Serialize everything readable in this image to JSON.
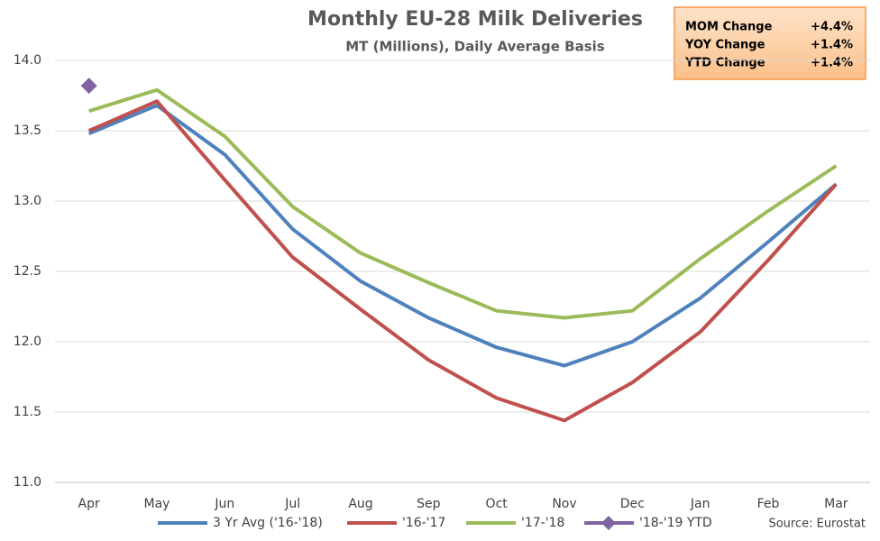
{
  "chart_data": {
    "type": "line",
    "title": "Monthly EU-28 Milk Deliveries",
    "subtitle": "MT (Millions), Daily Average Basis",
    "categories": [
      "Apr",
      "May",
      "Jun",
      "Jul",
      "Aug",
      "Sep",
      "Oct",
      "Nov",
      "Dec",
      "Jan",
      "Feb",
      "Mar"
    ],
    "series": [
      {
        "name": "3 Yr Avg ('16-'18)",
        "color": "#4f81bd",
        "values": [
          13.48,
          13.68,
          13.33,
          12.8,
          12.43,
          12.17,
          11.96,
          11.83,
          12.0,
          12.31,
          12.71,
          13.12
        ]
      },
      {
        "name": "'16-'17",
        "color": "#c0504d",
        "values": [
          13.5,
          13.71,
          13.15,
          12.6,
          12.23,
          11.87,
          11.6,
          11.44,
          11.71,
          12.07,
          12.58,
          13.12
        ]
      },
      {
        "name": "'17-'18",
        "color": "#9bbb59",
        "values": [
          13.64,
          13.79,
          13.46,
          12.96,
          12.63,
          12.42,
          12.22,
          12.17,
          12.22,
          12.59,
          12.93,
          13.25
        ]
      },
      {
        "name": "'18-'19 YTD",
        "color": "#8064a2",
        "marker": "diamond",
        "values": [
          13.82,
          null,
          null,
          null,
          null,
          null,
          null,
          null,
          null,
          null,
          null,
          null
        ]
      }
    ],
    "ylim": [
      11.0,
      14.0
    ],
    "yticks": [
      {
        "value": 11,
        "label": "11.0"
      },
      {
        "value": 11.5,
        "label": "11.5"
      },
      {
        "value": 12,
        "label": "12.0"
      },
      {
        "value": 12.5,
        "label": "12.5"
      },
      {
        "value": 13,
        "label": "13.0"
      },
      {
        "value": 13.5,
        "label": "13.5"
      },
      {
        "value": 14,
        "label": "14.0"
      }
    ],
    "grid": true,
    "legend": "bottom",
    "source": "Source: Eurostat",
    "info_box": [
      {
        "label": "MOM Change",
        "value": "+4.4%"
      },
      {
        "label": "YOY Change",
        "value": "+1.4%"
      },
      {
        "label": "YTD Change",
        "value": "+1.4%"
      }
    ]
  }
}
